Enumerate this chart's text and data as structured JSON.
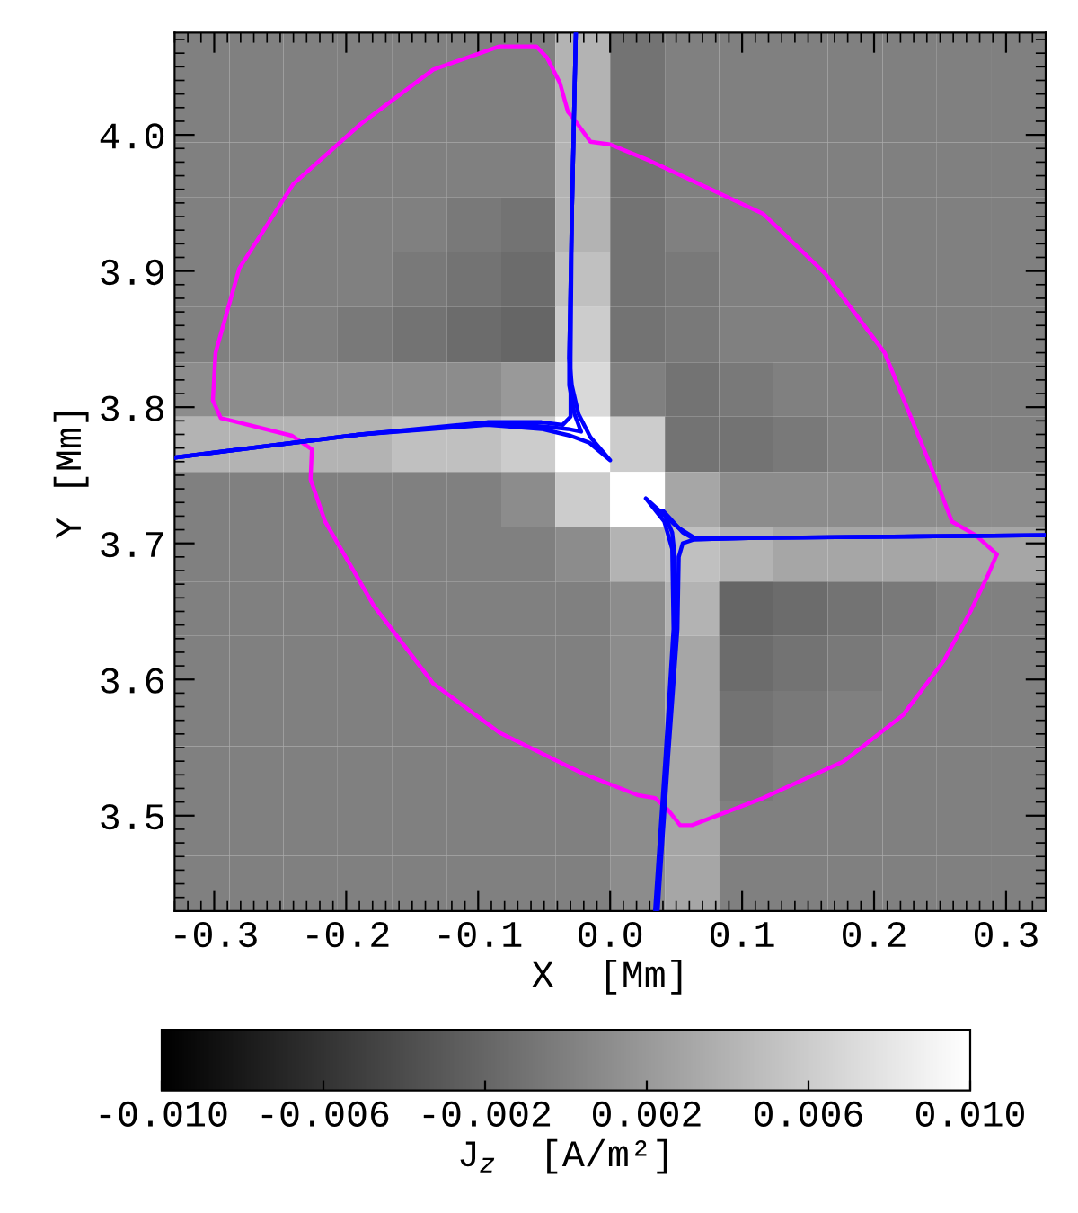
{
  "chart_data": {
    "type": "heatmap",
    "xlabel": "X  [Mm]",
    "ylabel": "Y [Mm]",
    "clabel": "J$_{z}$  [A/m²]",
    "x": [
      -0.309,
      -0.268,
      -0.227,
      -0.186,
      -0.144,
      -0.103,
      -0.062,
      -0.021,
      0.021,
      0.062,
      0.103,
      0.144,
      0.186,
      0.227,
      0.268,
      0.309
    ],
    "y": [
      4.055,
      4.015,
      3.974,
      3.934,
      3.894,
      3.853,
      3.813,
      3.773,
      3.732,
      3.692,
      3.652,
      3.612,
      3.571,
      3.531,
      3.491,
      3.45
    ],
    "xlim": [
      -0.33,
      0.33
    ],
    "ylim": [
      3.43,
      4.075
    ],
    "xticks": [
      -0.3,
      -0.2,
      -0.1,
      {
        "value": 0,
        "label": "0.0"
      },
      0.1,
      0.2,
      0.3
    ],
    "yticks": [
      3.5,
      3.6,
      3.7,
      3.8,
      3.9,
      {
        "value": 4,
        "label": "4.0"
      }
    ],
    "clim": [
      -0.01,
      0.01
    ],
    "cticks": [
      {
        "value": -0.01,
        "label": "-0.010"
      },
      {
        "value": -0.006,
        "label": "-0.006"
      },
      {
        "value": -0.002,
        "label": "-0.002"
      },
      {
        "value": 0.002,
        "label": "0.002"
      },
      {
        "value": 0.006,
        "label": "0.006"
      },
      {
        "value": 0.01,
        "label": "0.010"
      }
    ],
    "cells": [
      [
        0,
        0,
        0,
        0,
        0,
        0,
        0,
        0.004,
        -0.001,
        0,
        0,
        0,
        0,
        0,
        0,
        0
      ],
      [
        0,
        0,
        0,
        0,
        0,
        0,
        0,
        0.004,
        -0.001,
        0,
        0,
        0,
        0,
        0,
        0,
        0
      ],
      [
        0,
        0,
        0,
        0,
        0,
        0,
        0,
        0.004,
        -0.001,
        0,
        0,
        0,
        0,
        0,
        0,
        0
      ],
      [
        0,
        0,
        0,
        0,
        0,
        -0.0005,
        -0.001,
        0.004,
        -0.001,
        0,
        0,
        0,
        0,
        0,
        0,
        0
      ],
      [
        0,
        0,
        0,
        0,
        -0.0005,
        -0.001,
        -0.0015,
        0.005,
        -0.001,
        -0.0005,
        0,
        0,
        0,
        0,
        0,
        0
      ],
      [
        0,
        0,
        0,
        -0.0005,
        -0.001,
        -0.0015,
        -0.002,
        0.006,
        -0.001,
        -0.0005,
        0,
        0,
        0,
        0,
        0,
        0
      ],
      [
        0.001,
        0.001,
        0.001,
        0.001,
        0.001,
        0.001,
        0.002,
        0.007,
        0,
        -0.001,
        -0.0005,
        0,
        0,
        0,
        0,
        0
      ],
      [
        0.004,
        0.004,
        0.004,
        0.004,
        0.005,
        0.005,
        0.006,
        0.01,
        0.006,
        -0.001,
        -0.001,
        -0.0005,
        0,
        0,
        0,
        0
      ],
      [
        0,
        0,
        0,
        0,
        0,
        0,
        0.001,
        0.006,
        0.01,
        0.003,
        0.001,
        0.001,
        0.001,
        0.001,
        0.001,
        0.001
      ],
      [
        0,
        0,
        0,
        0,
        0,
        0,
        0,
        0.001,
        0.004,
        0.005,
        0.004,
        0.003,
        0.003,
        0.003,
        0.003,
        0.003
      ],
      [
        0,
        0,
        0,
        0,
        0,
        0,
        0,
        0,
        0.001,
        0.004,
        -0.002,
        -0.0015,
        -0.001,
        -0.0005,
        0,
        0
      ],
      [
        0,
        0,
        0,
        0,
        0,
        0,
        0,
        0,
        0.001,
        0.003,
        -0.0015,
        -0.001,
        -0.0005,
        0,
        0,
        0
      ],
      [
        0,
        0,
        0,
        0,
        0,
        0,
        0,
        0,
        0.001,
        0.003,
        -0.001,
        -0.0005,
        0,
        0,
        0,
        0
      ],
      [
        0,
        0,
        0,
        0,
        0,
        0,
        0,
        0,
        0.001,
        0.003,
        -0.0005,
        0,
        0,
        0,
        0,
        0
      ],
      [
        0,
        0,
        0,
        0,
        0,
        0,
        0,
        0,
        0.001,
        0.003,
        0,
        0,
        0,
        0,
        0,
        0
      ],
      [
        0,
        0,
        0,
        0,
        0,
        0,
        0,
        0,
        0.001,
        0.003,
        0,
        0,
        0,
        0,
        0,
        0
      ]
    ],
    "series": [
      {
        "type": "line",
        "color": "#ff00ff",
        "x": [
          -0.301,
          -0.299,
          -0.281,
          -0.24,
          -0.189,
          -0.134,
          -0.084,
          -0.056,
          -0.048,
          -0.038,
          -0.032,
          -0.027,
          -0.015,
          0.0,
          0.03,
          0.116,
          0.163,
          0.208,
          0.242,
          0.259,
          0.277,
          0.293
        ],
        "values": [
          3.805,
          3.84,
          3.902,
          3.964,
          4.008,
          4.048,
          4.065,
          4.065,
          4.057,
          4.038,
          4.017,
          4.011,
          3.995,
          3.993,
          3.981,
          3.942,
          3.898,
          3.84,
          3.759,
          3.716,
          3.706,
          3.692
        ]
      },
      {
        "type": "line",
        "color": "#ff00ff",
        "x": [
          -0.301,
          -0.295,
          -0.241,
          -0.226,
          -0.227,
          -0.216,
          -0.179,
          -0.134,
          -0.084,
          -0.021,
          0.021,
          0.034,
          0.044,
          0.053,
          0.062,
          0.116,
          0.177,
          0.222,
          0.253,
          0.273,
          0.286,
          0.293
        ],
        "values": [
          3.805,
          3.792,
          3.779,
          3.769,
          3.747,
          3.716,
          3.654,
          3.597,
          3.561,
          3.531,
          3.515,
          3.513,
          3.504,
          3.493,
          3.493,
          3.513,
          3.54,
          3.574,
          3.614,
          3.65,
          3.676,
          3.692
        ]
      },
      {
        "type": "line",
        "color": "#0000ff",
        "x": [
          -0.33,
          -0.189,
          -0.093,
          -0.052,
          -0.036,
          -0.03,
          -0.03,
          -0.029,
          -0.026
        ],
        "values": [
          3.763,
          3.78,
          3.789,
          3.789,
          3.787,
          3.793,
          3.836,
          3.942,
          4.075
        ]
      },
      {
        "type": "line",
        "color": "#0000ff",
        "x": [
          -0.33,
          -0.189,
          -0.093,
          -0.052,
          -0.032,
          -0.022,
          -0.027,
          -0.031,
          -0.031,
          -0.029,
          -0.026
        ],
        "values": [
          3.763,
          3.78,
          3.788,
          3.786,
          3.784,
          3.782,
          3.795,
          3.816,
          3.836,
          3.942,
          4.075
        ]
      },
      {
        "type": "line",
        "color": "#0000ff",
        "x": [
          -0.33,
          -0.189,
          -0.093,
          -0.052,
          -0.03,
          -0.016,
          0.0,
          -0.015,
          -0.024,
          -0.029,
          -0.031,
          -0.029,
          -0.026
        ],
        "values": [
          3.763,
          3.78,
          3.787,
          3.784,
          3.779,
          3.774,
          3.761,
          3.778,
          3.795,
          3.816,
          3.836,
          3.942,
          4.075
        ]
      },
      {
        "type": "line",
        "color": "#0000ff",
        "x": [
          0.33,
          0.222,
          0.112,
          0.064,
          0.055,
          0.052,
          0.051,
          0.044,
          0.036
        ],
        "values": [
          3.706,
          3.705,
          3.704,
          3.703,
          3.7,
          3.69,
          3.637,
          3.544,
          3.43
        ]
      },
      {
        "type": "line",
        "color": "#0000ff",
        "x": [
          0.33,
          0.112,
          0.064,
          0.055,
          0.04,
          0.047,
          0.049,
          0.049,
          0.043,
          0.035
        ],
        "values": [
          3.706,
          3.704,
          3.703,
          3.708,
          3.724,
          3.708,
          3.69,
          3.637,
          3.544,
          3.43
        ]
      },
      {
        "type": "line",
        "color": "#0000ff",
        "x": [
          0.33,
          0.112,
          0.064,
          0.051,
          0.027,
          0.041,
          0.047,
          0.048,
          0.042,
          0.034
        ],
        "values": [
          3.706,
          3.704,
          3.704,
          3.712,
          3.733,
          3.716,
          3.696,
          3.637,
          3.544,
          3.43
        ]
      }
    ]
  }
}
